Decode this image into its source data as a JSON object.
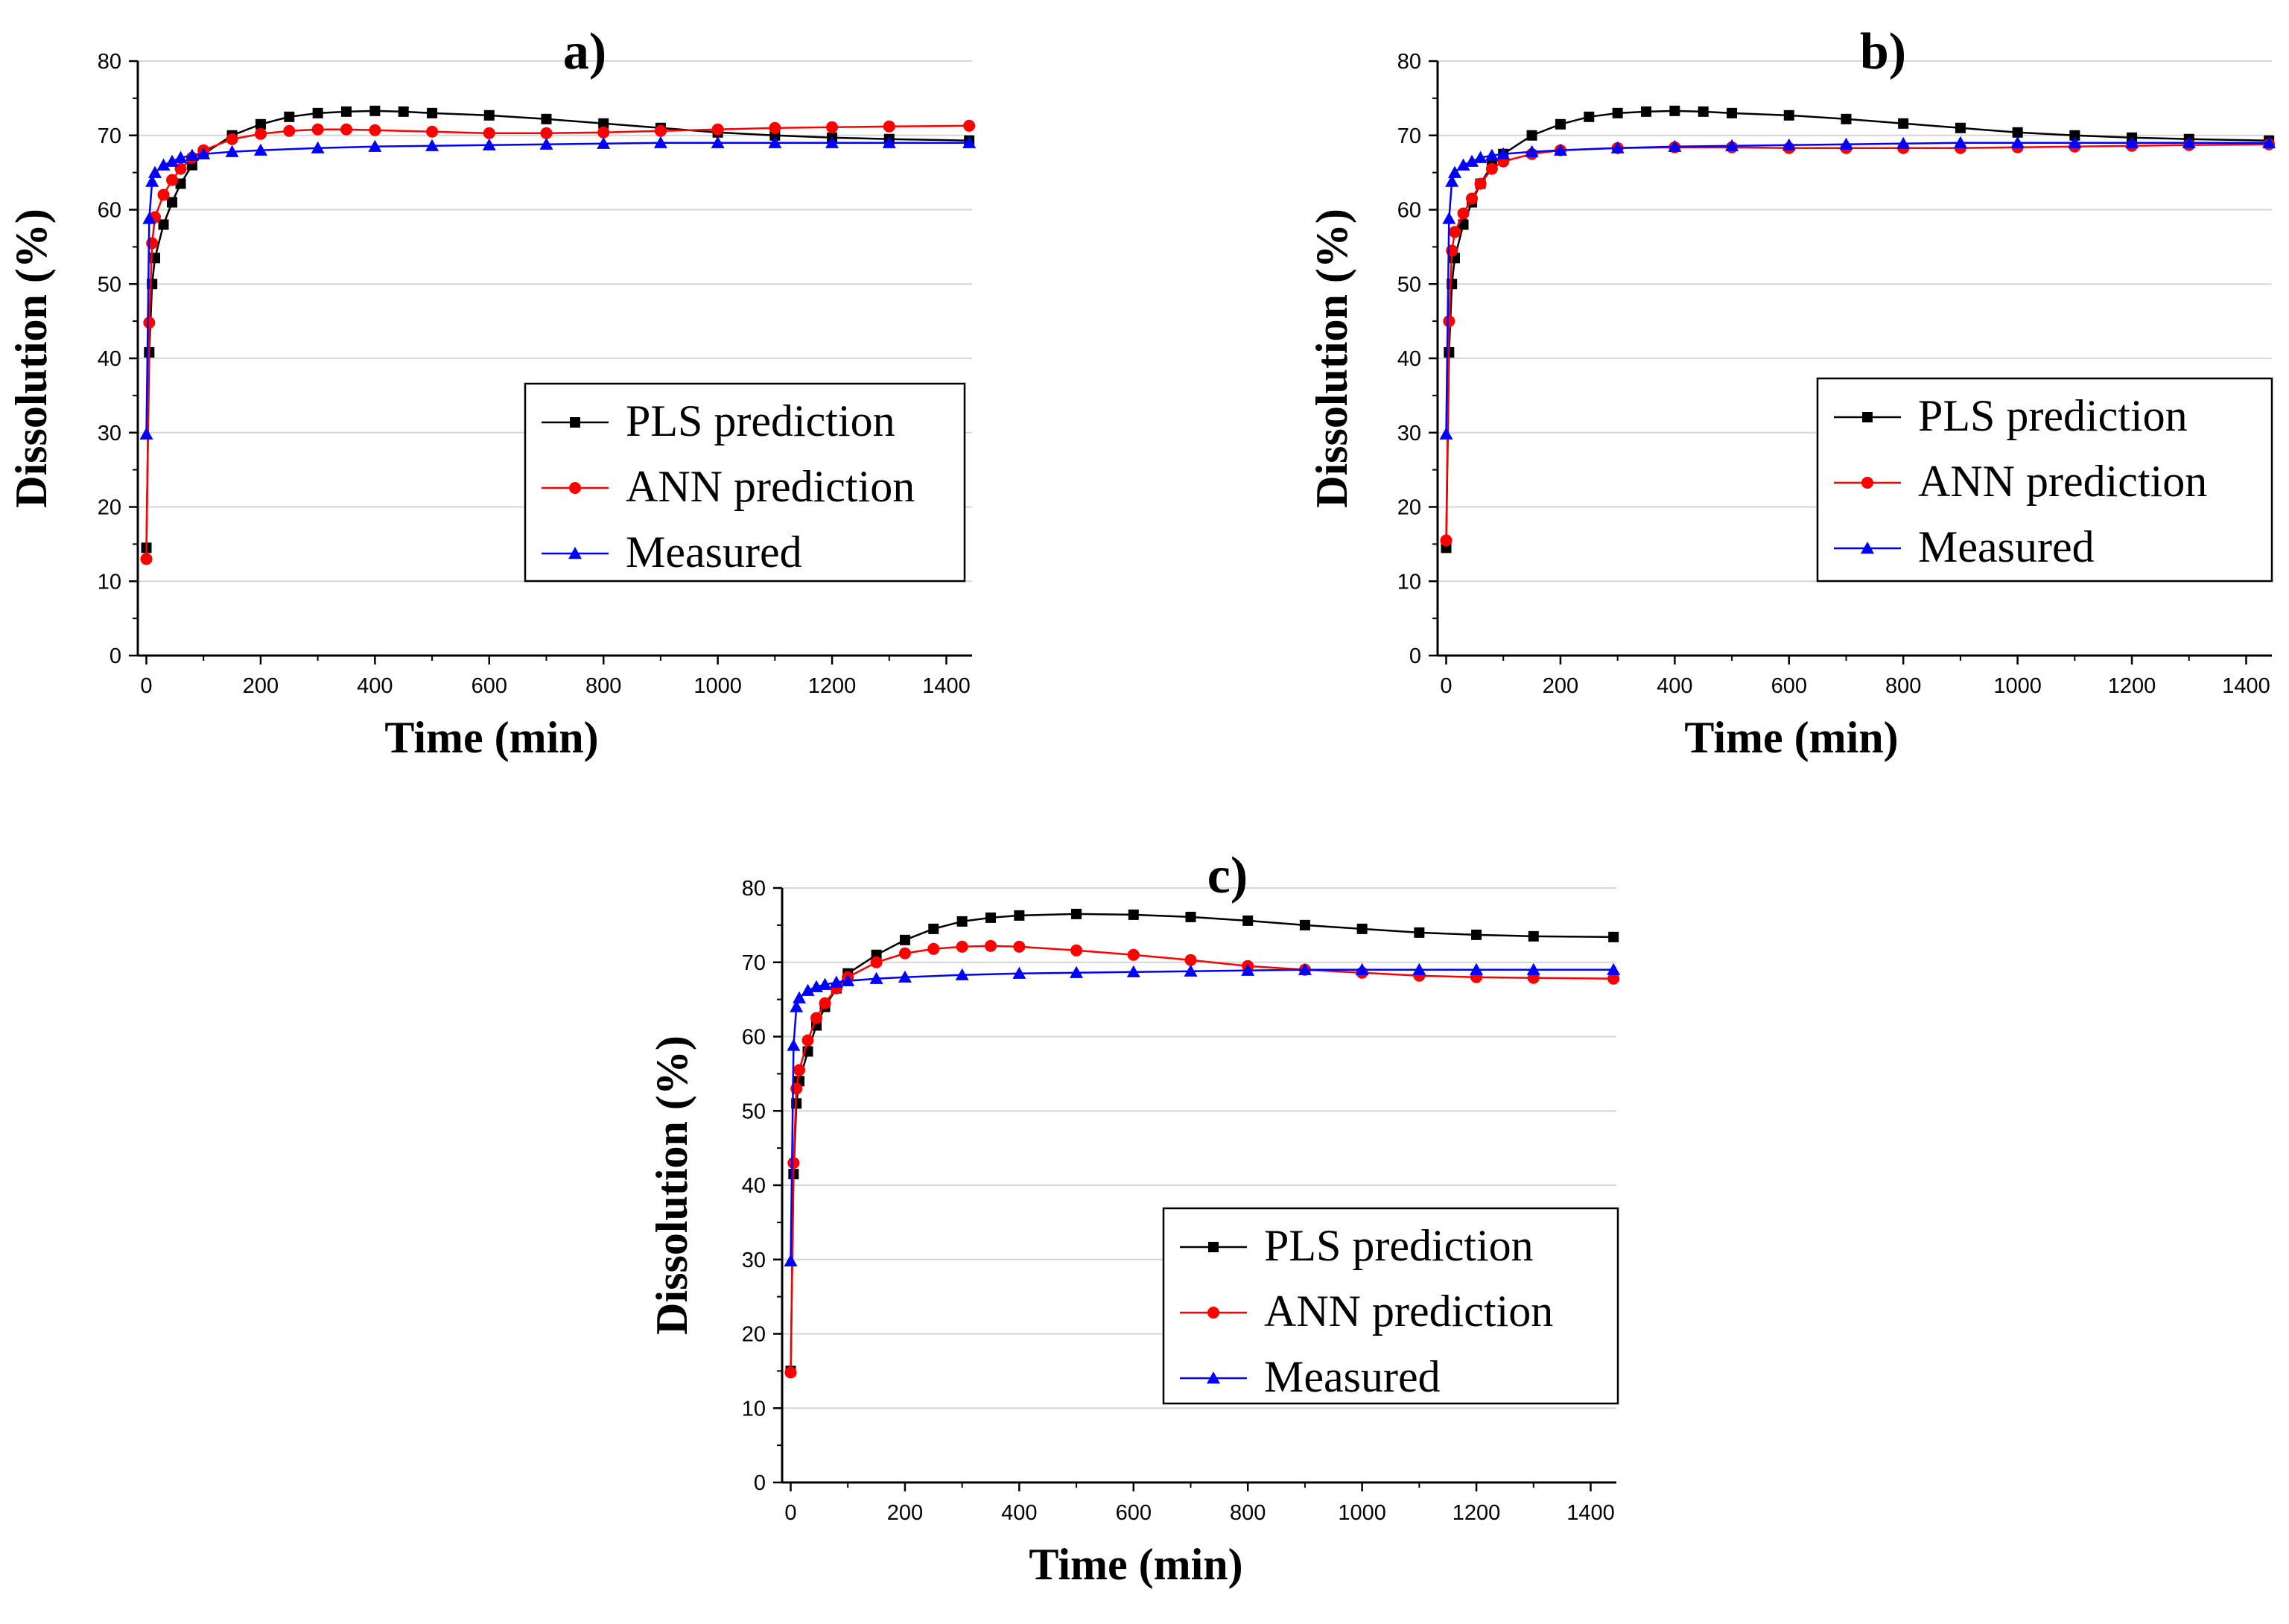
{
  "chart_data": [
    {
      "type": "line",
      "panel_label": "a)",
      "xlabel": "Time (min)",
      "ylabel": "Dissolution (%)",
      "xlim": [
        -15,
        1445
      ],
      "ylim": [
        0,
        80
      ],
      "xticks": [
        0,
        200,
        400,
        600,
        800,
        1000,
        1200,
        1400
      ],
      "yticks": [
        0,
        10,
        20,
        30,
        40,
        50,
        60,
        70,
        80
      ],
      "grid": "horizontal",
      "legend_position": "center-right",
      "series": [
        {
          "name": "PLS prediction",
          "color": "#000000",
          "marker": "square",
          "points": [
            [
              0,
              14.5
            ],
            [
              5,
              40.8
            ],
            [
              10,
              50
            ],
            [
              15,
              53.5
            ],
            [
              30,
              58
            ],
            [
              45,
              61
            ],
            [
              60,
              63.5
            ],
            [
              80,
              66
            ],
            [
              100,
              67.5
            ],
            [
              150,
              70
            ],
            [
              200,
              71.5
            ],
            [
              250,
              72.5
            ],
            [
              300,
              73
            ],
            [
              350,
              73.2
            ],
            [
              400,
              73.3
            ],
            [
              450,
              73.2
            ],
            [
              500,
              73
            ],
            [
              600,
              72.7
            ],
            [
              700,
              72.2
            ],
            [
              800,
              71.6
            ],
            [
              900,
              71
            ],
            [
              1000,
              70.4
            ],
            [
              1100,
              70
            ],
            [
              1200,
              69.7
            ],
            [
              1300,
              69.5
            ],
            [
              1440,
              69.3
            ]
          ]
        },
        {
          "name": "ANN prediction",
          "color": "#ff0000",
          "marker": "circle",
          "points": [
            [
              0,
              13
            ],
            [
              5,
              44.8
            ],
            [
              10,
              55.5
            ],
            [
              15,
              59
            ],
            [
              30,
              62
            ],
            [
              45,
              64
            ],
            [
              60,
              65.5
            ],
            [
              80,
              67
            ],
            [
              100,
              68
            ],
            [
              150,
              69.5
            ],
            [
              200,
              70.2
            ],
            [
              250,
              70.6
            ],
            [
              300,
              70.8
            ],
            [
              350,
              70.8
            ],
            [
              400,
              70.7
            ],
            [
              500,
              70.5
            ],
            [
              600,
              70.3
            ],
            [
              700,
              70.3
            ],
            [
              800,
              70.4
            ],
            [
              900,
              70.6
            ],
            [
              1000,
              70.8
            ],
            [
              1100,
              71
            ],
            [
              1200,
              71.1
            ],
            [
              1300,
              71.2
            ],
            [
              1440,
              71.3
            ]
          ]
        },
        {
          "name": "Measured",
          "color": "#0000ff",
          "marker": "triangle",
          "points": [
            [
              0,
              29.8
            ],
            [
              5,
              58.8
            ],
            [
              10,
              63.8
            ],
            [
              15,
              65
            ],
            [
              30,
              66
            ],
            [
              45,
              66.5
            ],
            [
              60,
              67
            ],
            [
              80,
              67.3
            ],
            [
              100,
              67.5
            ],
            [
              150,
              67.8
            ],
            [
              200,
              68
            ],
            [
              300,
              68.3
            ],
            [
              400,
              68.5
            ],
            [
              500,
              68.6
            ],
            [
              600,
              68.7
            ],
            [
              700,
              68.8
            ],
            [
              800,
              68.9
            ],
            [
              900,
              69
            ],
            [
              1000,
              69
            ],
            [
              1100,
              69
            ],
            [
              1200,
              69
            ],
            [
              1300,
              69
            ],
            [
              1440,
              69
            ]
          ]
        }
      ]
    },
    {
      "type": "line",
      "panel_label": "b)",
      "xlabel": "Time (min)",
      "ylabel": "Dissolution (%)",
      "xlim": [
        -15,
        1445
      ],
      "ylim": [
        0,
        80
      ],
      "xticks": [
        0,
        200,
        400,
        600,
        800,
        1000,
        1200,
        1400
      ],
      "yticks": [
        0,
        10,
        20,
        30,
        40,
        50,
        60,
        70,
        80
      ],
      "grid": "horizontal",
      "legend_position": "center-right",
      "series": [
        {
          "name": "PLS prediction",
          "color": "#000000",
          "marker": "square",
          "points": [
            [
              0,
              14.5
            ],
            [
              5,
              40.8
            ],
            [
              10,
              50
            ],
            [
              15,
              53.5
            ],
            [
              30,
              58
            ],
            [
              45,
              61
            ],
            [
              60,
              63.5
            ],
            [
              80,
              66
            ],
            [
              100,
              67.5
            ],
            [
              150,
              70
            ],
            [
              200,
              71.5
            ],
            [
              250,
              72.5
            ],
            [
              300,
              73
            ],
            [
              350,
              73.2
            ],
            [
              400,
              73.3
            ],
            [
              450,
              73.2
            ],
            [
              500,
              73
            ],
            [
              600,
              72.7
            ],
            [
              700,
              72.2
            ],
            [
              800,
              71.6
            ],
            [
              900,
              71
            ],
            [
              1000,
              70.4
            ],
            [
              1100,
              70
            ],
            [
              1200,
              69.7
            ],
            [
              1300,
              69.5
            ],
            [
              1440,
              69.3
            ]
          ]
        },
        {
          "name": "ANN prediction",
          "color": "#ff0000",
          "marker": "circle",
          "points": [
            [
              0,
              15.5
            ],
            [
              5,
              45
            ],
            [
              10,
              54.5
            ],
            [
              15,
              57
            ],
            [
              30,
              59.5
            ],
            [
              45,
              61.5
            ],
            [
              60,
              63.5
            ],
            [
              80,
              65.5
            ],
            [
              100,
              66.5
            ],
            [
              150,
              67.5
            ],
            [
              200,
              68
            ],
            [
              300,
              68.3
            ],
            [
              400,
              68.4
            ],
            [
              500,
              68.4
            ],
            [
              600,
              68.3
            ],
            [
              700,
              68.3
            ],
            [
              800,
              68.3
            ],
            [
              900,
              68.3
            ],
            [
              1000,
              68.4
            ],
            [
              1100,
              68.5
            ],
            [
              1200,
              68.6
            ],
            [
              1300,
              68.7
            ],
            [
              1440,
              68.8
            ]
          ]
        },
        {
          "name": "Measured",
          "color": "#0000ff",
          "marker": "triangle",
          "points": [
            [
              0,
              29.8
            ],
            [
              5,
              58.8
            ],
            [
              10,
              63.8
            ],
            [
              15,
              65
            ],
            [
              30,
              66
            ],
            [
              45,
              66.5
            ],
            [
              60,
              67
            ],
            [
              80,
              67.3
            ],
            [
              100,
              67.5
            ],
            [
              150,
              67.8
            ],
            [
              200,
              68
            ],
            [
              300,
              68.3
            ],
            [
              400,
              68.5
            ],
            [
              500,
              68.6
            ],
            [
              600,
              68.7
            ],
            [
              700,
              68.8
            ],
            [
              800,
              68.9
            ],
            [
              900,
              69
            ],
            [
              1000,
              69
            ],
            [
              1100,
              69
            ],
            [
              1200,
              69
            ],
            [
              1300,
              69
            ],
            [
              1440,
              69
            ]
          ]
        }
      ]
    },
    {
      "type": "line",
      "panel_label": "c)",
      "xlabel": "Time (min)",
      "ylabel": "Dissolution (%)",
      "xlim": [
        -15,
        1445
      ],
      "ylim": [
        0,
        80
      ],
      "xticks": [
        0,
        200,
        400,
        600,
        800,
        1000,
        1200,
        1400
      ],
      "yticks": [
        0,
        10,
        20,
        30,
        40,
        50,
        60,
        70,
        80
      ],
      "grid": "horizontal",
      "legend_position": "center-right",
      "series": [
        {
          "name": "PLS prediction",
          "color": "#000000",
          "marker": "square",
          "points": [
            [
              0,
              15
            ],
            [
              5,
              41.5
            ],
            [
              10,
              51
            ],
            [
              15,
              54
            ],
            [
              30,
              58
            ],
            [
              45,
              61.5
            ],
            [
              60,
              64
            ],
            [
              80,
              66.5
            ],
            [
              100,
              68.5
            ],
            [
              150,
              71
            ],
            [
              200,
              73
            ],
            [
              250,
              74.5
            ],
            [
              300,
              75.5
            ],
            [
              350,
              76
            ],
            [
              400,
              76.3
            ],
            [
              500,
              76.5
            ],
            [
              600,
              76.4
            ],
            [
              700,
              76.1
            ],
            [
              800,
              75.6
            ],
            [
              900,
              75
            ],
            [
              1000,
              74.5
            ],
            [
              1100,
              74
            ],
            [
              1200,
              73.7
            ],
            [
              1300,
              73.5
            ],
            [
              1440,
              73.4
            ]
          ]
        },
        {
          "name": "ANN prediction",
          "color": "#ff0000",
          "marker": "circle",
          "points": [
            [
              0,
              14.8
            ],
            [
              5,
              43
            ],
            [
              10,
              53
            ],
            [
              15,
              55.5
            ],
            [
              30,
              59.5
            ],
            [
              45,
              62.5
            ],
            [
              60,
              64.5
            ],
            [
              80,
              66.5
            ],
            [
              100,
              68
            ],
            [
              150,
              70
            ],
            [
              200,
              71.2
            ],
            [
              250,
              71.8
            ],
            [
              300,
              72.1
            ],
            [
              350,
              72.2
            ],
            [
              400,
              72.1
            ],
            [
              500,
              71.6
            ],
            [
              600,
              71
            ],
            [
              700,
              70.3
            ],
            [
              800,
              69.5
            ],
            [
              900,
              69
            ],
            [
              1000,
              68.6
            ],
            [
              1100,
              68.2
            ],
            [
              1200,
              68
            ],
            [
              1300,
              67.9
            ],
            [
              1440,
              67.8
            ]
          ]
        },
        {
          "name": "Measured",
          "color": "#0000ff",
          "marker": "triangle",
          "points": [
            [
              0,
              29.8
            ],
            [
              5,
              58.8
            ],
            [
              10,
              64
            ],
            [
              15,
              65.2
            ],
            [
              30,
              66.2
            ],
            [
              45,
              66.7
            ],
            [
              60,
              67
            ],
            [
              80,
              67.3
            ],
            [
              100,
              67.5
            ],
            [
              150,
              67.8
            ],
            [
              200,
              68
            ],
            [
              300,
              68.3
            ],
            [
              400,
              68.5
            ],
            [
              500,
              68.6
            ],
            [
              600,
              68.7
            ],
            [
              700,
              68.8
            ],
            [
              800,
              68.9
            ],
            [
              900,
              69
            ],
            [
              1000,
              69
            ],
            [
              1100,
              69
            ],
            [
              1200,
              69
            ],
            [
              1300,
              69
            ],
            [
              1440,
              69
            ]
          ]
        }
      ]
    }
  ]
}
